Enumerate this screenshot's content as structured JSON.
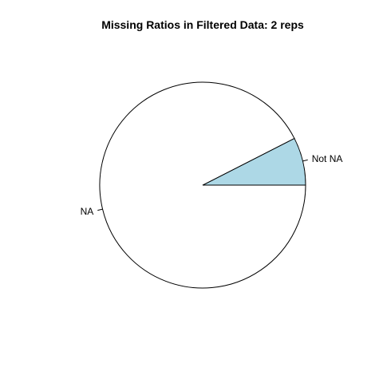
{
  "chart_data": {
    "type": "pie",
    "title": "Missing Ratios in Filtered Data: 2 reps",
    "slices": [
      {
        "label": "Not NA",
        "value": 0.075,
        "color": "#ADD8E6"
      },
      {
        "label": "NA",
        "value": 0.925,
        "color": "#FFFFFF"
      }
    ],
    "start_angle_deg": 0,
    "direction": "counterclockwise",
    "border_color": "#000000",
    "legend": "none"
  }
}
